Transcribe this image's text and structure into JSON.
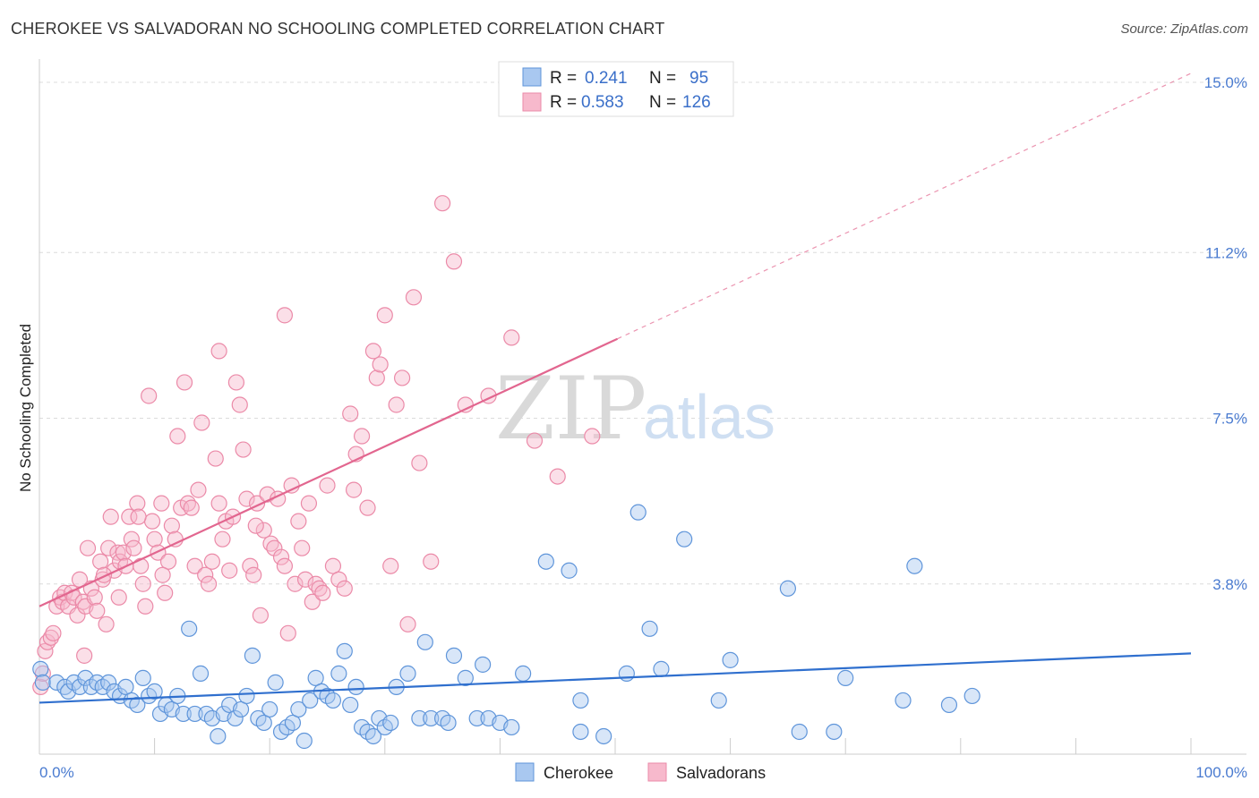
{
  "title": "CHEROKEE VS SALVADORAN NO SCHOOLING COMPLETED CORRELATION CHART",
  "source": "Source: ZipAtlas.com",
  "watermark": {
    "zip": "ZIP",
    "atlas": "atlas"
  },
  "colors": {
    "cherokee_fill": "#a9c8f0",
    "cherokee_stroke": "#5f95da",
    "cherokee_line": "#2f6fce",
    "salvadoran_fill": "#f7b9cc",
    "salvadoran_stroke": "#eb8aa8",
    "salvadoran_line": "#e2668f",
    "tick_text": "#4a7bd0"
  },
  "legend": {
    "rows": [
      {
        "r_label": "R =",
        "r_value": "0.241",
        "n_label": "N =",
        "n_value": "95"
      },
      {
        "r_label": "R =",
        "r_value": "0.583",
        "n_label": "N =",
        "n_value": "126"
      }
    ]
  },
  "chart_data": {
    "type": "scatter",
    "title": "CHEROKEE VS SALVADORAN NO SCHOOLING COMPLETED CORRELATION CHART",
    "xlabel": "",
    "ylabel": "No Schooling Completed",
    "xlim": [
      0,
      100
    ],
    "ylim": [
      0,
      15.3
    ],
    "x_tick_labels": [
      "0.0%",
      "100.0%"
    ],
    "y_ticks": [
      3.8,
      7.5,
      11.2,
      15.0
    ],
    "y_tick_labels": [
      "3.8%",
      "7.5%",
      "11.2%",
      "15.0%"
    ],
    "grid": "horizontal dashed",
    "legend_position": "top-center",
    "series": [
      {
        "name": "Cherokee",
        "R": 0.241,
        "N": 95,
        "trend": {
          "x0": 0,
          "y0": 1.15,
          "x1": 100,
          "y1": 2.25,
          "solid_to": 100
        },
        "points": [
          [
            0.1,
            1.9
          ],
          [
            0.3,
            1.6
          ],
          [
            1.5,
            1.6
          ],
          [
            2.2,
            1.5
          ],
          [
            2.5,
            1.4
          ],
          [
            3.0,
            1.6
          ],
          [
            3.5,
            1.5
          ],
          [
            4.0,
            1.7
          ],
          [
            4.5,
            1.5
          ],
          [
            5.0,
            1.6
          ],
          [
            5.5,
            1.5
          ],
          [
            6.0,
            1.6
          ],
          [
            6.5,
            1.4
          ],
          [
            7.0,
            1.3
          ],
          [
            7.5,
            1.5
          ],
          [
            8.0,
            1.2
          ],
          [
            8.5,
            1.1
          ],
          [
            9.0,
            1.7
          ],
          [
            9.5,
            1.3
          ],
          [
            10.0,
            1.4
          ],
          [
            10.5,
            0.9
          ],
          [
            11.0,
            1.1
          ],
          [
            11.5,
            1.0
          ],
          [
            12.0,
            1.3
          ],
          [
            12.5,
            0.9
          ],
          [
            13.0,
            2.8
          ],
          [
            13.5,
            0.9
          ],
          [
            14.0,
            1.8
          ],
          [
            14.5,
            0.9
          ],
          [
            15.0,
            0.8
          ],
          [
            15.5,
            0.4
          ],
          [
            16.0,
            0.9
          ],
          [
            16.5,
            1.1
          ],
          [
            17.0,
            0.8
          ],
          [
            17.5,
            1.0
          ],
          [
            18.0,
            1.3
          ],
          [
            18.5,
            2.2
          ],
          [
            19.0,
            0.8
          ],
          [
            19.5,
            0.7
          ],
          [
            20.0,
            1.0
          ],
          [
            20.5,
            1.6
          ],
          [
            21.0,
            0.5
          ],
          [
            21.5,
            0.6
          ],
          [
            22.0,
            0.7
          ],
          [
            22.5,
            1.0
          ],
          [
            23.0,
            0.3
          ],
          [
            23.5,
            1.2
          ],
          [
            24.0,
            1.7
          ],
          [
            24.5,
            1.4
          ],
          [
            25.0,
            1.3
          ],
          [
            25.5,
            1.2
          ],
          [
            26.0,
            1.8
          ],
          [
            26.5,
            2.3
          ],
          [
            27.0,
            1.1
          ],
          [
            27.5,
            1.5
          ],
          [
            28.0,
            0.6
          ],
          [
            28.5,
            0.5
          ],
          [
            29.0,
            0.4
          ],
          [
            29.5,
            0.8
          ],
          [
            30.0,
            0.6
          ],
          [
            30.5,
            0.7
          ],
          [
            31.0,
            1.5
          ],
          [
            32.0,
            1.8
          ],
          [
            33.0,
            0.8
          ],
          [
            33.5,
            2.5
          ],
          [
            34.0,
            0.8
          ],
          [
            35.0,
            0.8
          ],
          [
            35.5,
            0.7
          ],
          [
            36.0,
            2.2
          ],
          [
            37.0,
            1.7
          ],
          [
            38.0,
            0.8
          ],
          [
            38.5,
            2.0
          ],
          [
            39.0,
            0.8
          ],
          [
            40.0,
            0.7
          ],
          [
            41.0,
            0.6
          ],
          [
            42.0,
            1.8
          ],
          [
            44.0,
            4.3
          ],
          [
            46.0,
            4.1
          ],
          [
            47.0,
            1.2
          ],
          [
            47.0,
            0.5
          ],
          [
            49.0,
            0.4
          ],
          [
            51.0,
            1.8
          ],
          [
            52.0,
            5.4
          ],
          [
            53.0,
            2.8
          ],
          [
            54.0,
            1.9
          ],
          [
            56.0,
            4.8
          ],
          [
            59.0,
            1.2
          ],
          [
            60.0,
            2.1
          ],
          [
            65.0,
            3.7
          ],
          [
            66.0,
            0.5
          ],
          [
            69.0,
            0.5
          ],
          [
            70.0,
            1.7
          ],
          [
            75.0,
            1.2
          ],
          [
            76.0,
            4.2
          ],
          [
            79.0,
            1.1
          ],
          [
            81.0,
            1.3
          ]
        ]
      },
      {
        "name": "Salvadorans",
        "R": 0.583,
        "N": 126,
        "trend": {
          "x0": 0,
          "y0": 3.3,
          "x1": 100,
          "y1": 15.2,
          "solid_to": 50.2
        },
        "points": [
          [
            0.1,
            1.5
          ],
          [
            0.3,
            1.8
          ],
          [
            0.5,
            2.3
          ],
          [
            0.7,
            2.5
          ],
          [
            1.0,
            2.6
          ],
          [
            1.2,
            2.7
          ],
          [
            1.5,
            3.3
          ],
          [
            1.8,
            3.5
          ],
          [
            2.0,
            3.4
          ],
          [
            2.2,
            3.6
          ],
          [
            2.5,
            3.3
          ],
          [
            2.8,
            3.6
          ],
          [
            3.0,
            3.5
          ],
          [
            3.3,
            3.1
          ],
          [
            3.5,
            3.9
          ],
          [
            3.8,
            3.4
          ],
          [
            4.0,
            3.3
          ],
          [
            4.2,
            4.6
          ],
          [
            4.5,
            3.7
          ],
          [
            4.8,
            3.5
          ],
          [
            5.0,
            3.2
          ],
          [
            5.3,
            4.3
          ],
          [
            5.5,
            3.9
          ],
          [
            5.8,
            2.9
          ],
          [
            6.0,
            4.6
          ],
          [
            6.2,
            5.3
          ],
          [
            6.5,
            4.1
          ],
          [
            6.8,
            4.5
          ],
          [
            7.0,
            4.3
          ],
          [
            7.3,
            4.5
          ],
          [
            7.5,
            4.2
          ],
          [
            7.8,
            5.3
          ],
          [
            8.0,
            4.8
          ],
          [
            8.2,
            4.6
          ],
          [
            8.5,
            5.6
          ],
          [
            8.8,
            4.2
          ],
          [
            9.0,
            3.8
          ],
          [
            9.2,
            3.3
          ],
          [
            9.5,
            8.0
          ],
          [
            9.8,
            5.2
          ],
          [
            10.0,
            4.8
          ],
          [
            10.3,
            4.5
          ],
          [
            10.6,
            5.6
          ],
          [
            10.9,
            3.6
          ],
          [
            11.2,
            4.3
          ],
          [
            11.5,
            5.1
          ],
          [
            11.8,
            4.8
          ],
          [
            12.0,
            7.1
          ],
          [
            12.3,
            5.5
          ],
          [
            12.6,
            8.3
          ],
          [
            12.9,
            5.6
          ],
          [
            13.2,
            5.5
          ],
          [
            13.5,
            4.2
          ],
          [
            13.8,
            5.9
          ],
          [
            14.1,
            7.4
          ],
          [
            14.4,
            4.0
          ],
          [
            14.7,
            3.8
          ],
          [
            15.0,
            4.3
          ],
          [
            15.3,
            6.6
          ],
          [
            15.6,
            5.6
          ],
          [
            15.9,
            4.8
          ],
          [
            16.2,
            5.2
          ],
          [
            16.5,
            4.1
          ],
          [
            16.8,
            5.3
          ],
          [
            17.1,
            8.3
          ],
          [
            17.4,
            7.8
          ],
          [
            17.7,
            6.8
          ],
          [
            18.0,
            5.7
          ],
          [
            18.3,
            4.2
          ],
          [
            18.6,
            4.0
          ],
          [
            18.9,
            5.6
          ],
          [
            19.2,
            3.1
          ],
          [
            19.5,
            5.0
          ],
          [
            19.8,
            5.8
          ],
          [
            20.1,
            4.7
          ],
          [
            20.4,
            4.6
          ],
          [
            20.7,
            5.7
          ],
          [
            21.0,
            4.4
          ],
          [
            21.3,
            4.2
          ],
          [
            21.6,
            2.7
          ],
          [
            21.9,
            6.0
          ],
          [
            22.2,
            3.8
          ],
          [
            22.5,
            5.2
          ],
          [
            22.8,
            4.6
          ],
          [
            23.1,
            3.9
          ],
          [
            23.4,
            5.6
          ],
          [
            23.7,
            3.4
          ],
          [
            24.0,
            3.8
          ],
          [
            24.3,
            3.7
          ],
          [
            24.6,
            3.6
          ],
          [
            25.0,
            6.0
          ],
          [
            25.5,
            4.2
          ],
          [
            26.0,
            3.9
          ],
          [
            26.5,
            3.7
          ],
          [
            27.0,
            7.6
          ],
          [
            27.5,
            6.7
          ],
          [
            28.0,
            7.1
          ],
          [
            28.5,
            5.5
          ],
          [
            29.0,
            9.0
          ],
          [
            29.3,
            8.4
          ],
          [
            29.6,
            8.7
          ],
          [
            30.0,
            9.8
          ],
          [
            30.5,
            4.2
          ],
          [
            31.0,
            7.8
          ],
          [
            31.5,
            8.4
          ],
          [
            32.0,
            2.9
          ],
          [
            32.5,
            10.2
          ],
          [
            33.0,
            6.5
          ],
          [
            34.0,
            4.3
          ],
          [
            35.0,
            12.3
          ],
          [
            36.0,
            11.0
          ],
          [
            37.0,
            7.8
          ],
          [
            39.0,
            8.0
          ],
          [
            41.0,
            9.3
          ],
          [
            43.0,
            7.0
          ],
          [
            45.0,
            6.2
          ],
          [
            48.0,
            7.1
          ],
          [
            15.6,
            9.0
          ],
          [
            21.3,
            9.8
          ],
          [
            8.6,
            5.3
          ],
          [
            5.6,
            4.0
          ],
          [
            3.9,
            2.2
          ],
          [
            6.9,
            3.5
          ],
          [
            10.7,
            4.0
          ],
          [
            18.8,
            5.1
          ],
          [
            27.3,
            5.9
          ]
        ]
      }
    ]
  }
}
